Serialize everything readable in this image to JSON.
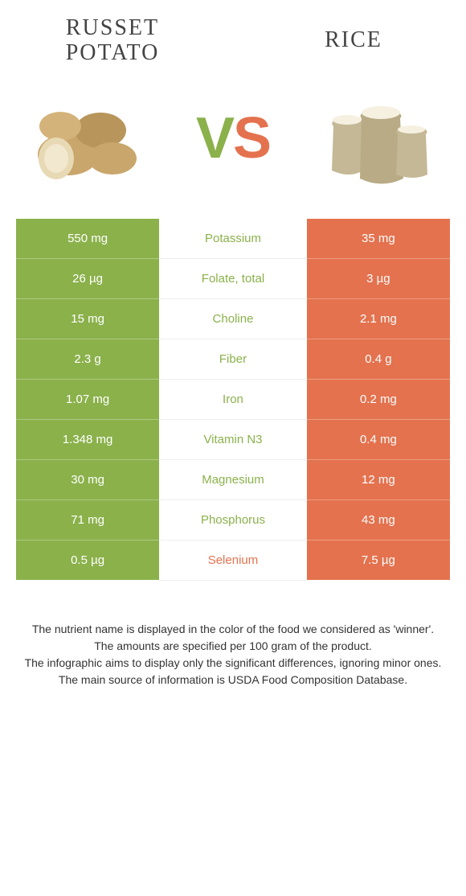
{
  "header": {
    "left_title": "Russet potato",
    "right_title": "Rice",
    "vs_v": "V",
    "vs_s": "S"
  },
  "colors": {
    "left": "#8bb14b",
    "right": "#e4724e",
    "text": "#333333",
    "bg": "#ffffff"
  },
  "rows": [
    {
      "left": "550 mg",
      "label": "Potassium",
      "right": "35 mg",
      "winner": "left"
    },
    {
      "left": "26 µg",
      "label": "Folate, total",
      "right": "3 µg",
      "winner": "left"
    },
    {
      "left": "15 mg",
      "label": "Choline",
      "right": "2.1 mg",
      "winner": "left"
    },
    {
      "left": "2.3 g",
      "label": "Fiber",
      "right": "0.4 g",
      "winner": "left"
    },
    {
      "left": "1.07 mg",
      "label": "Iron",
      "right": "0.2 mg",
      "winner": "left"
    },
    {
      "left": "1.348 mg",
      "label": "Vitamin N3",
      "right": "0.4 mg",
      "winner": "left"
    },
    {
      "left": "30 mg",
      "label": "Magnesium",
      "right": "12 mg",
      "winner": "left"
    },
    {
      "left": "71 mg",
      "label": "Phosphorus",
      "right": "43 mg",
      "winner": "left"
    },
    {
      "left": "0.5 µg",
      "label": "Selenium",
      "right": "7.5 µg",
      "winner": "right"
    }
  ],
  "footer": {
    "line1": "The nutrient name is displayed in the color of the food we considered as 'winner'.",
    "line2": "The amounts are specified per 100 gram of the product.",
    "line3": "The infographic aims to display only the significant differences, ignoring minor ones.",
    "line4": "The main source of information is USDA Food Composition Database."
  }
}
